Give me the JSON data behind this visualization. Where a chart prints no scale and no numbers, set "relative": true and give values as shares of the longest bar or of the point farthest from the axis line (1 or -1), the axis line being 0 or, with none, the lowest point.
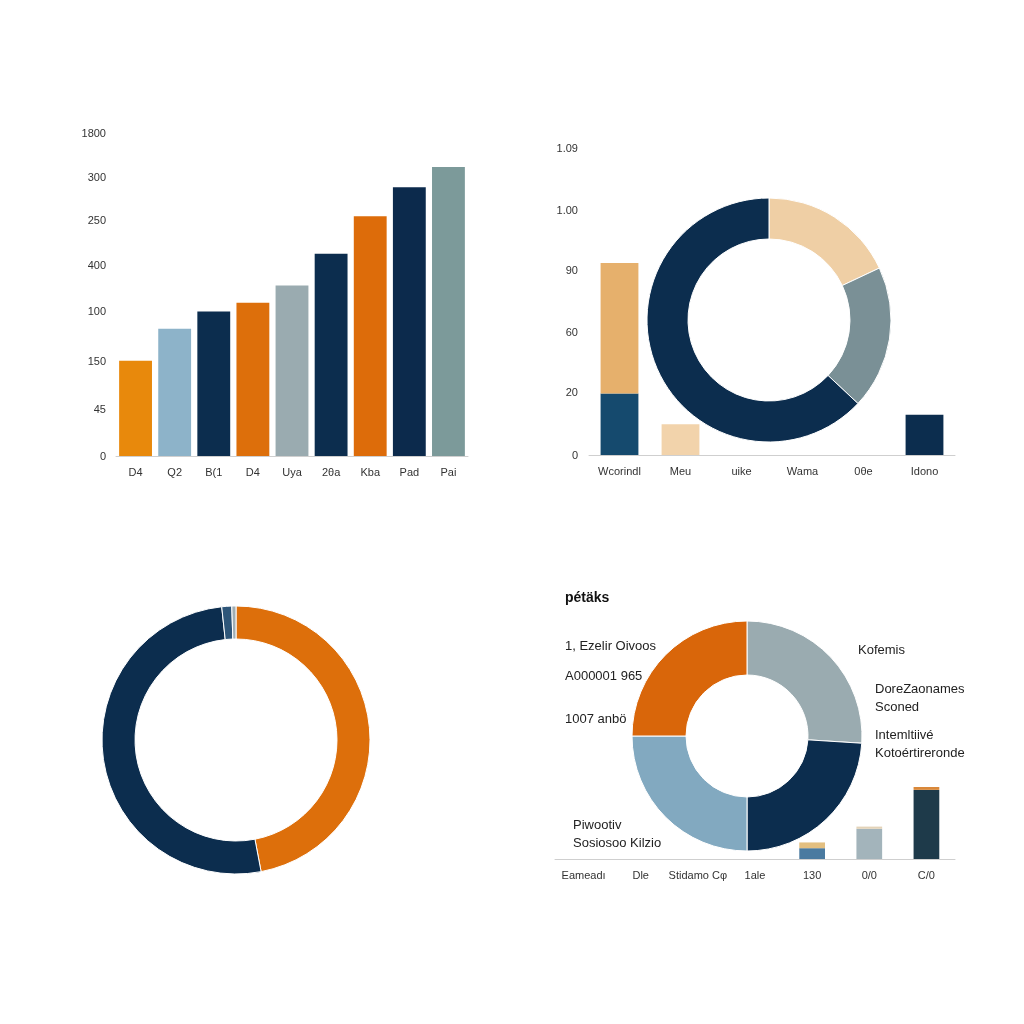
{
  "chart_data": [
    {
      "type": "bar",
      "categories": [
        "D4",
        "Q2",
        "B(1",
        "D4",
        "Uya",
        "2θa",
        "Kba",
        "Pad",
        "Pai"
      ],
      "relative": true,
      "annotations": [
        "1800",
        "300",
        "250",
        "400",
        "100",
        "150",
        "45",
        "0"
      ],
      "series": [
        {
          "values": [
            0.33,
            0.44,
            0.5,
            0.53,
            0.59,
            0.7,
            0.83,
            0.93,
            1
          ],
          "colors": [
            "#e8890c",
            "#8db3c9",
            "#0c2d4e",
            "#dd6f0b",
            "#9aabb0",
            "#0c2d4e",
            "#dd6c0a",
            "#0c2a4c",
            "#7c9a9a"
          ]
        }
      ]
    },
    {
      "type": "bar",
      "categories": [
        "Wcorindl",
        "Meu",
        "uike",
        "Wama",
        "0θe",
        "Idono"
      ],
      "relative": true,
      "stacked": true,
      "annotations": [
        "1.09",
        "1.00",
        "90",
        "60",
        "20",
        "0"
      ],
      "series": [
        {
          "values": [
            0.32,
            null,
            null,
            null,
            null,
            0.21
          ],
          "colors": [
            "#154a6e",
            null,
            null,
            null,
            null,
            "#0c2d4e"
          ]
        },
        {
          "values": [
            0.68,
            0.16,
            null,
            null,
            null,
            null
          ],
          "colors": [
            "#e6b06c",
            "#f2d3ab",
            null,
            null,
            null,
            null
          ]
        }
      ]
    },
    {
      "type": "donut",
      "categories": [
        null,
        null,
        null
      ],
      "values": [
        18,
        19,
        63
      ],
      "colors": [
        "#efcfa5",
        "#7a9096",
        "#0c2d4e"
      ]
    },
    {
      "type": "donut",
      "categories": [
        null,
        null,
        null,
        null
      ],
      "values": [
        47,
        51.3,
        1.2,
        0.5
      ],
      "colors": [
        "#dd6f0b",
        "#0c2d4e",
        "#2e5679",
        "#a0aeb4"
      ]
    },
    {
      "type": "donut",
      "title": "pétäks",
      "categories": [
        null,
        null,
        null,
        null
      ],
      "values": [
        26,
        24,
        25,
        25
      ],
      "colors": [
        "#9aabb0",
        "#0c2d4e",
        "#82a9c0",
        "#d9660a"
      ],
      "annotations": [
        "1, Ezelir Oivoos",
        "A000001 965",
        "1007 anbö",
        "Kofemis",
        "DoreZaonames\nSconed",
        "Intemltiivé\nKotoértireronde",
        "Piwootiv\nSosiosoo Kilzio"
      ]
    },
    {
      "type": "bar",
      "categories": [
        "Eameadı",
        "Dle",
        "Stidamo Cφ",
        "1ale",
        "130",
        "0/0",
        "C/0"
      ],
      "relative": true,
      "stacked": true,
      "series": [
        {
          "values": [
            null,
            null,
            null,
            null,
            0.15,
            0.42,
            0.96
          ],
          "colors": [
            null,
            null,
            null,
            null,
            "#4a7aa0",
            "#a3b4bb",
            "#1e3a4a"
          ]
        },
        {
          "values": [
            null,
            null,
            null,
            null,
            0.08,
            0.03,
            0.04
          ],
          "colors": [
            null,
            null,
            null,
            null,
            "#e3bf80",
            "#e3d3b8",
            "#d9883a"
          ]
        }
      ]
    }
  ]
}
